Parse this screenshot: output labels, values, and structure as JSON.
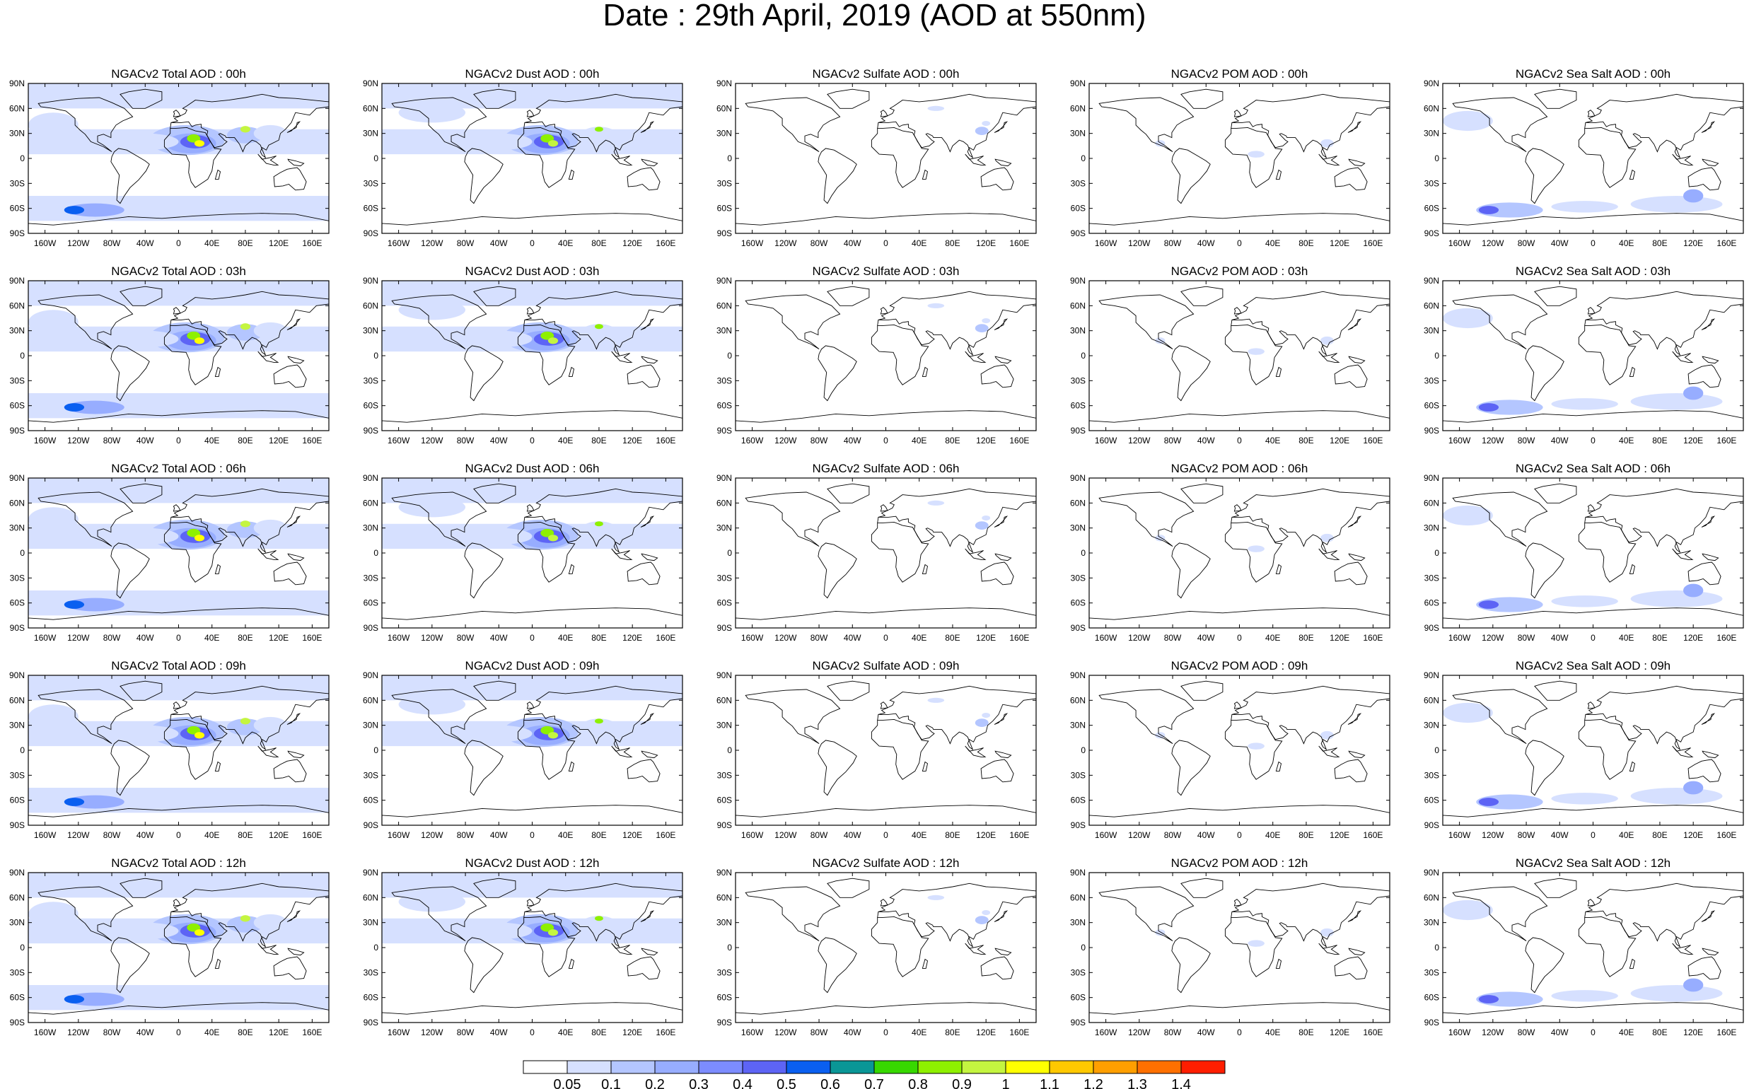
{
  "title": "Date : 29th April, 2019 (AOD at 550nm)",
  "panels": [
    [
      "NGACv2 Total AOD : 00h",
      "NGACv2 Dust AOD : 00h",
      "NGACv2 Sulfate AOD : 00h",
      "NGACv2 POM AOD : 00h",
      "NGACv2 Sea Salt AOD : 00h"
    ],
    [
      "NGACv2 Total AOD : 03h",
      "NGACv2 Dust AOD : 03h",
      "NGACv2 Sulfate AOD : 03h",
      "NGACv2 POM AOD : 03h",
      "NGACv2 Sea Salt AOD : 03h"
    ],
    [
      "NGACv2 Total AOD : 06h",
      "NGACv2 Dust AOD : 06h",
      "NGACv2 Sulfate AOD : 06h",
      "NGACv2 POM AOD : 06h",
      "NGACv2 Sea Salt AOD : 06h"
    ],
    [
      "NGACv2 Total AOD : 09h",
      "NGACv2 Dust AOD : 09h",
      "NGACv2 Sulfate AOD : 09h",
      "NGACv2 POM AOD : 09h",
      "NGACv2 Sea Salt  AOD : 09h"
    ],
    [
      "NGACv2 Total AOD :  12h",
      "NGACv2 Dust AOD : 12h",
      "NGACv2 Sulfate AOD : 12h",
      "NGACv2 POM  AOD : 12h",
      "NGACv2 Sea Salt AOD : 12h"
    ]
  ],
  "lat_labels": [
    "90N",
    "60N",
    "30N",
    "0",
    "30S",
    "60S",
    "90S"
  ],
  "lon_labels": [
    "160W",
    "120W",
    "80W",
    "40W",
    "0",
    "40E",
    "80E",
    "120E",
    "160E"
  ],
  "colorbar": {
    "labels": [
      "0.05",
      "0.1",
      "0.2",
      "0.3",
      "0.4",
      "0.5",
      "0.6",
      "0.7",
      "0.8",
      "0.9",
      "1",
      "1.1",
      "1.2",
      "1.3",
      "1.4"
    ],
    "colors": [
      "#ffffff",
      "#d6e0ff",
      "#b4c6ff",
      "#97adff",
      "#7c8cff",
      "#5d64f5",
      "#0a5ff0",
      "#0a9696",
      "#37d800",
      "#8ef000",
      "#c4f540",
      "#ffff00",
      "#ffc800",
      "#ff9f00",
      "#ff7000",
      "#ff1e00"
    ]
  }
}
